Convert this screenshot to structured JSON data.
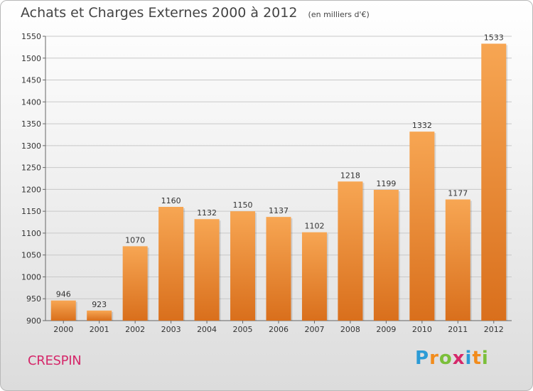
{
  "title": "Achats et Charges Externes 2000 à 2012",
  "subtitle": "(en milliers d'€)",
  "city": "CRESPIN",
  "logo": {
    "letters": [
      "P",
      "r",
      "o",
      "x",
      "i",
      "t",
      "i"
    ],
    "colors": [
      "#2b9bd6",
      "#f28c1c",
      "#7bbf3a",
      "#d5286a",
      "#2b9bd6",
      "#f28c1c",
      "#7bbf3a"
    ]
  },
  "colors": {
    "bar_light": "#f7a653",
    "bar_dark": "#d96f1c",
    "grid": "#c8c8c8",
    "city": "#d5286a"
  },
  "chart_data": {
    "type": "bar",
    "title": "Achats et Charges Externes 2000 à 2012",
    "subtitle": "(en milliers d'€)",
    "categories": [
      "2000",
      "2001",
      "2002",
      "2003",
      "2004",
      "2005",
      "2006",
      "2007",
      "2008",
      "2009",
      "2010",
      "2011",
      "2012"
    ],
    "values": [
      946,
      923,
      1070,
      1160,
      1132,
      1150,
      1137,
      1102,
      1218,
      1199,
      1332,
      1177,
      1533
    ],
    "ylim": [
      900,
      1550
    ],
    "yticks": [
      900,
      950,
      1000,
      1050,
      1100,
      1150,
      1200,
      1250,
      1300,
      1350,
      1400,
      1450,
      1500,
      1550
    ],
    "grid": true,
    "xlabel": "",
    "ylabel": ""
  }
}
